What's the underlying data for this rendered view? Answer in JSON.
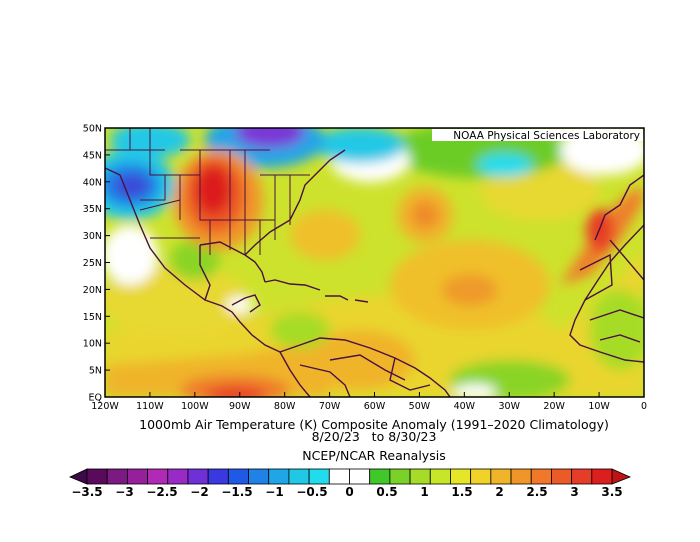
{
  "map": {
    "credit": "NOAA Physical Sciences Laboratory",
    "lat_labels": [
      "EQ",
      "5N",
      "10N",
      "15N",
      "20N",
      "25N",
      "30N",
      "35N",
      "40N",
      "45N",
      "50N"
    ],
    "lon_labels": [
      "120W",
      "110W",
      "100W",
      "90W",
      "80W",
      "70W",
      "60W",
      "50W",
      "40W",
      "30W",
      "20W",
      "10W",
      "0"
    ],
    "title_line1": "1000mb Air Temperature (K) Composite Anomaly (1991–2020 Climatology)",
    "title_line2": "8/20/23   to 8/30/23",
    "source": "NCEP/NCAR Reanalysis",
    "lat_range": [
      0,
      50
    ],
    "lon_range": [
      -120,
      0
    ]
  },
  "colorbar": {
    "tick_labels": [
      "−3.5",
      "−3",
      "−2.5",
      "−2",
      "−1.5",
      "−1",
      "−0.5",
      "0",
      "0.5",
      "1",
      "1.5",
      "2",
      "2.5",
      "3",
      "3.5"
    ],
    "colors": [
      "#5a0a5a",
      "#7a1a82",
      "#96209b",
      "#b02ab5",
      "#9a2ac8",
      "#7030d8",
      "#3a38e0",
      "#1e5ae6",
      "#1e82e6",
      "#20a6e6",
      "#20c8e6",
      "#20dcec",
      "#ffffff",
      "#ffffff",
      "#40c828",
      "#7ad228",
      "#a6dc28",
      "#c8e628",
      "#e6e628",
      "#f0d228",
      "#f0b428",
      "#f09628",
      "#f07828",
      "#ec5a28",
      "#e63c28",
      "#dc1e1e"
    ],
    "end_low": "#3c0a46",
    "end_high": "#c01414"
  },
  "palette": {
    "background_field": "#cde22c",
    "land_outline": "#4a1040"
  }
}
